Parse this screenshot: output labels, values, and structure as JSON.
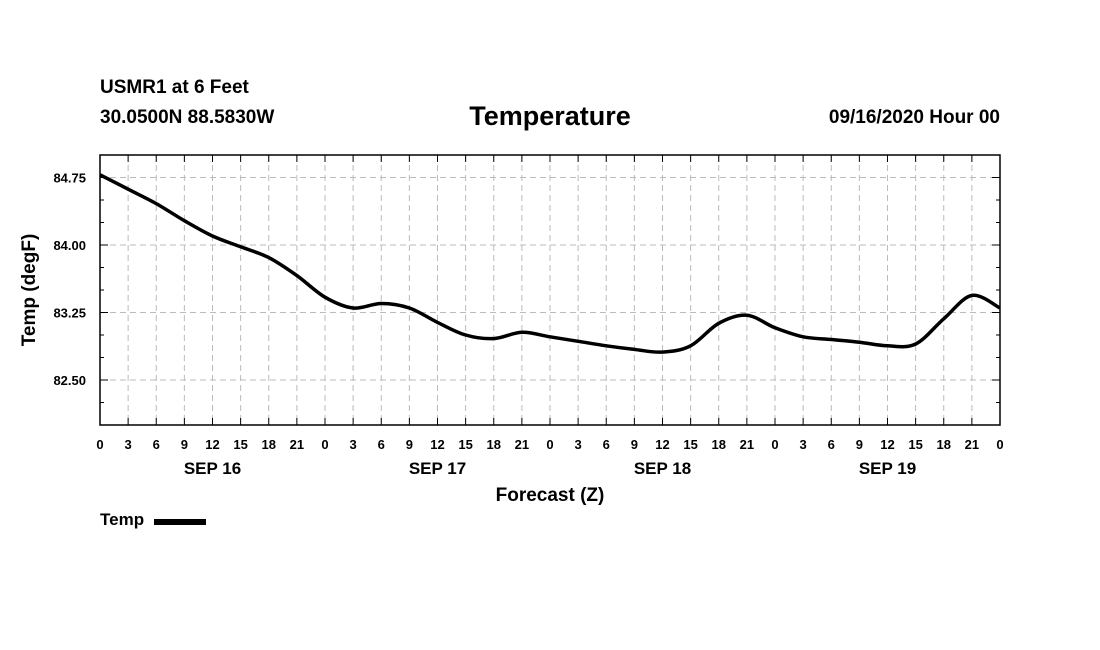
{
  "header": {
    "station": "USMR1 at 6 Feet",
    "coords": "30.0500N 88.5830W",
    "title": "Temperature",
    "run_time": "09/16/2020 Hour 00"
  },
  "legend": {
    "label": "Temp",
    "color": "#000000"
  },
  "chart_data": {
    "type": "line",
    "title": "Temperature",
    "xlabel": "Forecast (Z)",
    "ylabel": "Temp (degF)",
    "ylim": [
      82.0,
      85.0
    ],
    "xlim": [
      0,
      96
    ],
    "grid": true,
    "legend_position": "bottom-left",
    "yticks": [
      "82.50",
      "83.25",
      "84.00",
      "84.75"
    ],
    "ytick_values": [
      82.5,
      83.25,
      84.0,
      84.75
    ],
    "xtick_hours": [
      0,
      3,
      6,
      9,
      12,
      15,
      18,
      21,
      24,
      27,
      30,
      33,
      36,
      39,
      42,
      45,
      48,
      51,
      54,
      57,
      60,
      63,
      66,
      69,
      72,
      75,
      78,
      81,
      84,
      87,
      90,
      93,
      96
    ],
    "xtick_labels": [
      "0",
      "3",
      "6",
      "9",
      "12",
      "15",
      "18",
      "21",
      "0",
      "3",
      "6",
      "9",
      "12",
      "15",
      "18",
      "21",
      "0",
      "3",
      "6",
      "9",
      "12",
      "15",
      "18",
      "21",
      "0",
      "3",
      "6",
      "9",
      "12",
      "15",
      "18",
      "21",
      "0"
    ],
    "day_labels": [
      {
        "label": "SEP 16",
        "hour": 12
      },
      {
        "label": "SEP 17",
        "hour": 36
      },
      {
        "label": "SEP 18",
        "hour": 60
      },
      {
        "label": "SEP 19",
        "hour": 84
      }
    ],
    "series": [
      {
        "name": "Temp",
        "x": [
          0,
          3,
          6,
          9,
          12,
          15,
          18,
          21,
          24,
          27,
          30,
          33,
          36,
          39,
          42,
          45,
          48,
          51,
          54,
          57,
          60,
          63,
          66,
          69,
          72,
          75,
          78,
          81,
          84,
          87,
          90,
          93,
          96
        ],
        "values": [
          84.78,
          84.62,
          84.46,
          84.27,
          84.1,
          83.98,
          83.86,
          83.66,
          83.42,
          83.3,
          83.35,
          83.3,
          83.14,
          83.0,
          82.96,
          83.03,
          82.98,
          82.93,
          82.88,
          82.84,
          82.81,
          82.88,
          83.13,
          83.22,
          83.08,
          82.98,
          82.95,
          82.92,
          82.88,
          82.9,
          83.18,
          83.44,
          83.3
        ]
      }
    ]
  }
}
